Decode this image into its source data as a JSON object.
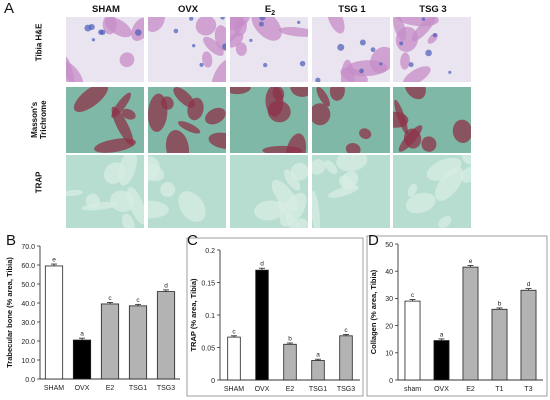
{
  "figure": {
    "panel_letters": [
      "A",
      "B",
      "C",
      "D"
    ],
    "panel_a": {
      "column_headers": [
        "SHAM",
        "OVX",
        "E",
        "TSG 1",
        "TSG 3"
      ],
      "e2_subscript": "2",
      "row_labels": [
        {
          "text": "Tibia H&E"
        },
        {
          "text": "Masson's Trichrome"
        },
        {
          "text": "TRAP"
        }
      ],
      "stain_colors": {
        "he_background": "#e9e4f0",
        "he_tissue": "#c58cc8",
        "masson_background": "#7fb8a6",
        "masson_tissue": "#8d3148",
        "trap_background": "#b7ddd0",
        "trap_tissue": "#d7ece3"
      }
    }
  },
  "chart_data": [
    {
      "type": "bar",
      "panel": "B",
      "categories": [
        "SHAM",
        "OVX",
        "E2",
        "TSG1",
        "TSG3"
      ],
      "values": [
        59.5,
        20.5,
        39.5,
        38.5,
        46.0
      ],
      "errors": [
        1.0,
        1.0,
        0.8,
        0.8,
        0.9
      ],
      "letters": [
        "e",
        "a",
        "c",
        "c",
        "d"
      ],
      "fills": [
        "#ffffff",
        "#000000",
        "#b3b3b3",
        "#b3b3b3",
        "#b3b3b3"
      ],
      "ylabel": "Trabecular bone (% area, Tibia)",
      "ylim": [
        0,
        70
      ],
      "yticks": [
        "0.0",
        "10.0",
        "20.0",
        "30.0",
        "40.0",
        "50.0",
        "60.0",
        "70.0"
      ],
      "ytick_values": [
        0,
        10,
        20,
        30,
        40,
        50,
        60,
        70
      ],
      "grid": false
    },
    {
      "type": "bar",
      "panel": "C",
      "categories": [
        "SHAM",
        "OVX",
        "E2",
        "TSG1",
        "TSG3"
      ],
      "values": [
        0.066,
        0.169,
        0.055,
        0.03,
        0.068
      ],
      "errors": [
        0.002,
        0.003,
        0.002,
        0.002,
        0.002
      ],
      "letters": [
        "c",
        "d",
        "b",
        "a",
        "c"
      ],
      "fills": [
        "#ffffff",
        "#000000",
        "#b3b3b3",
        "#b3b3b3",
        "#b3b3b3"
      ],
      "ylabel": "TRAP (% area, Tibia)",
      "ylim": [
        0,
        0.2
      ],
      "yticks": [
        "0",
        "0.05",
        "0.1",
        "0.15",
        "0.2"
      ],
      "ytick_values": [
        0,
        0.05,
        0.1,
        0.15,
        0.2
      ],
      "grid": false
    },
    {
      "type": "bar",
      "panel": "D",
      "categories": [
        "sham",
        "OVX",
        "E2",
        "T1",
        "T3"
      ],
      "values": [
        29,
        14.5,
        41.5,
        26,
        33
      ],
      "errors": [
        0.6,
        0.6,
        0.6,
        0.5,
        0.6
      ],
      "letters": [
        "c",
        "a",
        "e",
        "b",
        "d"
      ],
      "fills": [
        "#ffffff",
        "#000000",
        "#b3b3b3",
        "#b3b3b3",
        "#b3b3b3"
      ],
      "ylabel": "Collagen (% area, Tibia)",
      "ylim": [
        0,
        50
      ],
      "yticks": [
        "0",
        "10",
        "20",
        "30",
        "40",
        "50"
      ],
      "ytick_values": [
        0,
        10,
        20,
        30,
        40,
        50
      ],
      "grid": false
    }
  ]
}
